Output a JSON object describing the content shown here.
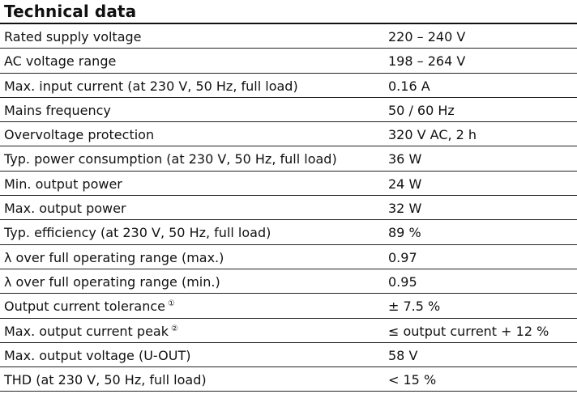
{
  "title": "Technical data",
  "rows": [
    {
      "label": "Rated supply voltage",
      "value": "220 – 240 V",
      "note": ""
    },
    {
      "label": "AC voltage range",
      "value": "198 – 264 V",
      "note": ""
    },
    {
      "label": "Max. input current (at 230 V, 50 Hz, full load)",
      "value": "0.16 A",
      "note": ""
    },
    {
      "label": "Mains frequency",
      "value": "50 / 60 Hz",
      "note": ""
    },
    {
      "label": "Overvoltage protection",
      "value": "320 V AC, 2 h",
      "note": ""
    },
    {
      "label": "Typ. power consumption (at 230 V, 50 Hz, full load)",
      "value": "36 W",
      "note": ""
    },
    {
      "label": "Min. output power",
      "value": "24 W",
      "note": ""
    },
    {
      "label": "Max. output power",
      "value": "32 W",
      "note": ""
    },
    {
      "label": "Typ. efficiency (at 230 V, 50 Hz, full load)",
      "value": "89 %",
      "note": ""
    },
    {
      "label": "λ over full operating range (max.)",
      "value": "0.97",
      "note": ""
    },
    {
      "label": "λ over full operating range (min.)",
      "value": "0.95",
      "note": ""
    },
    {
      "label": "Output current tolerance",
      "value": "± 7.5 %",
      "note": "①"
    },
    {
      "label": "Max. output current peak",
      "value": "≤ output current + 12 %",
      "note": "②"
    },
    {
      "label": "Max. output voltage (U-OUT)",
      "value": "58 V",
      "note": ""
    },
    {
      "label": "THD (at 230 V, 50 Hz, full load)",
      "value": "< 15 %",
      "note": ""
    }
  ]
}
